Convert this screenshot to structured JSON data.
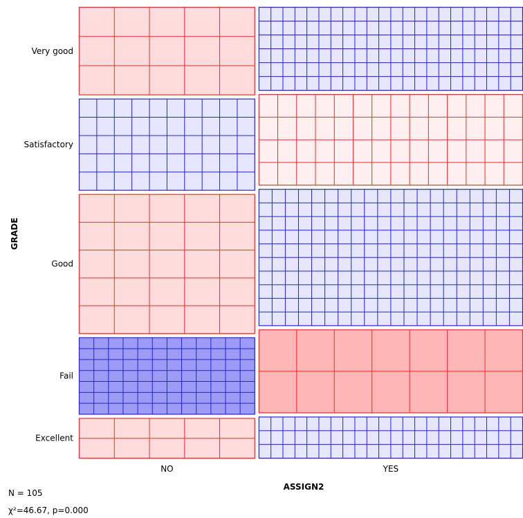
{
  "chart_data": {
    "type": "mosaic",
    "xlabel": "ASSIGN2",
    "ylabel": "GRADE",
    "x_categories": [
      "NO",
      "YES"
    ],
    "y_categories": [
      "Very good",
      "Satisfactory",
      "Good",
      "Fail",
      "Excellent"
    ],
    "column_proportions": [
      0.4,
      0.6
    ],
    "row_proportions": {
      "NO": [
        0.24,
        0.25,
        0.38,
        0.21,
        0.11
      ],
      "YES": [
        0.22,
        0.24,
        0.36,
        0.22,
        0.11
      ]
    },
    "residual_shading": {
      "NO": [
        "red-light",
        "blue-light",
        "red-light",
        "blue-strong",
        "red-light"
      ],
      "YES": [
        "blue-light",
        "red-faint",
        "blue-light",
        "red-strong",
        "blue-light"
      ]
    },
    "cell_grid": {
      "NO": [
        [
          5,
          3
        ],
        [
          10,
          5
        ],
        [
          5,
          5
        ],
        [
          12,
          7
        ],
        [
          5,
          2
        ]
      ],
      "YES": [
        [
          22,
          6
        ],
        [
          14,
          4
        ],
        [
          20,
          10
        ],
        [
          7,
          2
        ],
        [
          22,
          3
        ]
      ]
    },
    "shading_colors": {
      "red-light": {
        "fill": "#ffdcdc",
        "line": "#ee2a2a"
      },
      "red-faint": {
        "fill": "#fff0f0",
        "line": "#ee2a2a"
      },
      "red-strong": {
        "fill": "#ffb6b6",
        "line": "#ee2a2a"
      },
      "blue-light": {
        "fill": "#e6e6ff",
        "line": "#2222dd"
      },
      "blue-strong": {
        "fill": "#9c9cf6",
        "line": "#2222dd"
      }
    }
  },
  "stats": {
    "n_text": "N = 105",
    "chi_text": "χ²=46.67, p=0.000"
  }
}
